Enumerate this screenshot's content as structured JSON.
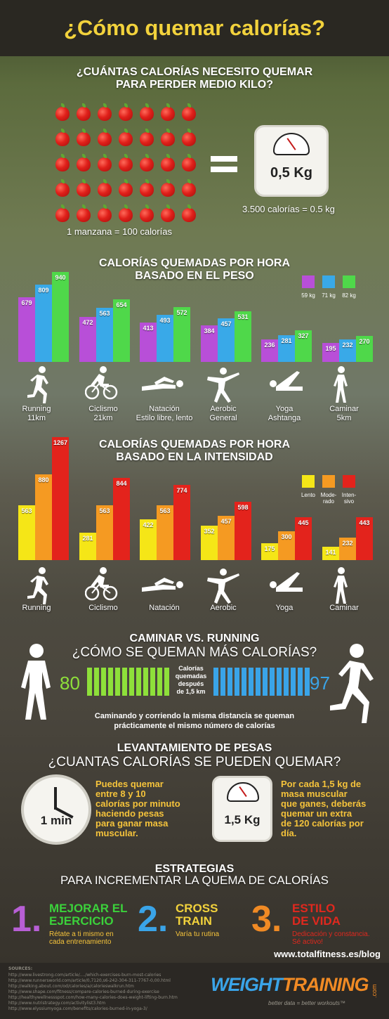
{
  "title": "¿Cómo quemar calorías?",
  "section1": {
    "heading_line1": "¿CUÁNTAS CALORÍAS NECESITO QUEMAR",
    "heading_line2": "PARA PERDER MEDIO KILO?",
    "apple_rows": 5,
    "apple_cols": 7,
    "apple_note": "1 manzana = 100 calorías",
    "scale_label": "0,5 Kg",
    "scale_note": "3.500 calorías = 0.5 kg"
  },
  "section2": {
    "heading_line1": "CALORÍAS QUEMADAS POR HORA",
    "heading_line2": "BASADO EN EL PESO",
    "legend": [
      "59 kg",
      "71 kg",
      "82 kg"
    ],
    "activities": [
      {
        "name": "Running",
        "sub": "11km",
        "icon": "running-icon"
      },
      {
        "name": "Ciclismo",
        "sub": "21km",
        "icon": "cycling-icon"
      },
      {
        "name": "Natación",
        "sub": "Estilo libre, lento",
        "icon": "swimming-icon"
      },
      {
        "name": "Aerobic",
        "sub": "General",
        "icon": "aerobic-icon"
      },
      {
        "name": "Yoga",
        "sub": "Ashtanga",
        "icon": "yoga-icon"
      },
      {
        "name": "Caminar",
        "sub": "5km",
        "icon": "walking-icon"
      }
    ]
  },
  "section3": {
    "heading_line1": "CALORÍAS QUEMADAS POR HORA",
    "heading_line2": "BASADO EN LA INTENSIDAD",
    "legend": [
      "Lento",
      "Mode-rado",
      "Inten-sivo"
    ],
    "activities": [
      "Running",
      "Ciclismo",
      "Natación",
      "Aerobic",
      "Yoga",
      "Caminar"
    ]
  },
  "section4": {
    "heading_line1": "CAMINAR VS. RUNNING",
    "heading_line2": "¿CÓMO SE QUEMAN MÁS CALORÍAS?",
    "walk_value": "80",
    "run_value": "97",
    "center_line1": "Calorías",
    "center_line2": "quemadas",
    "center_line3": "después",
    "center_line4": "de 1,5 km",
    "note_line1": "Caminando y corriendo la misma distancia se queman",
    "note_line2": "prácticamente el mismo número de calorías"
  },
  "section5": {
    "heading_line1": "LEVANTAMIENTO DE PESAS",
    "heading_line2": "¿CUANTAS CALORÍAS SE PUEDEN QUEMAR?",
    "clock_label": "1 min",
    "text_left": [
      "Puedes quemar",
      "entre 8 y 10",
      "calorías por minuto",
      "haciendo pesas",
      "para ganar masa",
      "muscular."
    ],
    "scale_label": "1,5 Kg",
    "text_right": [
      "Por cada 1,5 kg de",
      "masa muscular",
      "que ganes, deberás",
      "quemar un extra",
      "de 120 calorías por",
      "día."
    ]
  },
  "section6": {
    "heading_line1": "ESTRATEGIAS",
    "heading_line2": "PARA INCREMENTAR LA QUEMA DE CALORÍAS",
    "items": [
      {
        "num": "1.",
        "title1": "MEJORAR EL",
        "title2": "EJERCICIO",
        "sub1": "Rétate a ti mismo en",
        "sub2": "cada entrenamiento",
        "num_color": "#b85fd6",
        "title_color": "#3bd13b"
      },
      {
        "num": "2.",
        "title1": "CROSS",
        "title2": "TRAIN",
        "sub1": "Varía tu rutina",
        "sub2": "",
        "num_color": "#3aa4e8",
        "title_color": "#f2d23c"
      },
      {
        "num": "3.",
        "title1": "ESTILO",
        "title2": "DE VIDA",
        "sub1": "Dedicación y constancia.",
        "sub2": "Sé activo!",
        "num_color": "#f08a24",
        "title_color": "#e0281e"
      }
    ],
    "site": "www.totalfitness.es/blog"
  },
  "footer": {
    "sources_label": "SOURCES:",
    "sources": [
      "http://www.livestrong.com/article/..../which-exercises-burn-most-calories",
      "http://www.runnersworld.com/article/0,7120,s6-242-304-311-7767-0,00.html",
      "http://walking.about.com/od/calories/a/calorieswalkrun.htm",
      "http://www.shape.com/fitness/compare-calories-burned-during-exercise",
      "http://healthywellnessspot.com/how-many-calories-does-weight-lifting-burn.htm",
      "http://www.nutristrategy.com/activitylist3.htm",
      "http://www.elyssiumyoga.com/benefits/calories-burned-in-yoga-3/"
    ],
    "brand_word1": "WEIGHT",
    "brand_word2": "TRAINING",
    "brand_suffix": ".com",
    "tagline": "better data = better workouts™"
  },
  "chart_data": [
    {
      "type": "bar",
      "title": "CALORÍAS QUEMADAS POR HORA BASADO EN EL PESO",
      "categories": [
        "Running",
        "Ciclismo",
        "Natación",
        "Aerobic",
        "Yoga",
        "Caminar"
      ],
      "series": [
        {
          "name": "59 kg",
          "color": "#b84fd8",
          "values": [
            679,
            472,
            413,
            384,
            236,
            195
          ]
        },
        {
          "name": "71 kg",
          "color": "#39a9e8",
          "values": [
            809,
            563,
            493,
            457,
            281,
            232
          ]
        },
        {
          "name": "82 kg",
          "color": "#4fd84a",
          "values": [
            940,
            654,
            572,
            531,
            327,
            270
          ]
        }
      ]
    },
    {
      "type": "bar",
      "title": "CALORÍAS QUEMADAS POR HORA BASADO EN LA INTENSIDAD",
      "categories": [
        "Running",
        "Ciclismo",
        "Natación",
        "Aerobic",
        "Yoga",
        "Caminar"
      ],
      "series": [
        {
          "name": "Lento",
          "color": "#f5e617",
          "values": [
            563,
            281,
            422,
            352,
            175,
            141
          ]
        },
        {
          "name": "Moderado",
          "color": "#f59a22",
          "values": [
            880,
            563,
            563,
            457,
            300,
            232
          ]
        },
        {
          "name": "Intensivo",
          "color": "#e3231c",
          "values": [
            1267,
            844,
            774,
            598,
            445,
            443
          ]
        }
      ]
    }
  ]
}
